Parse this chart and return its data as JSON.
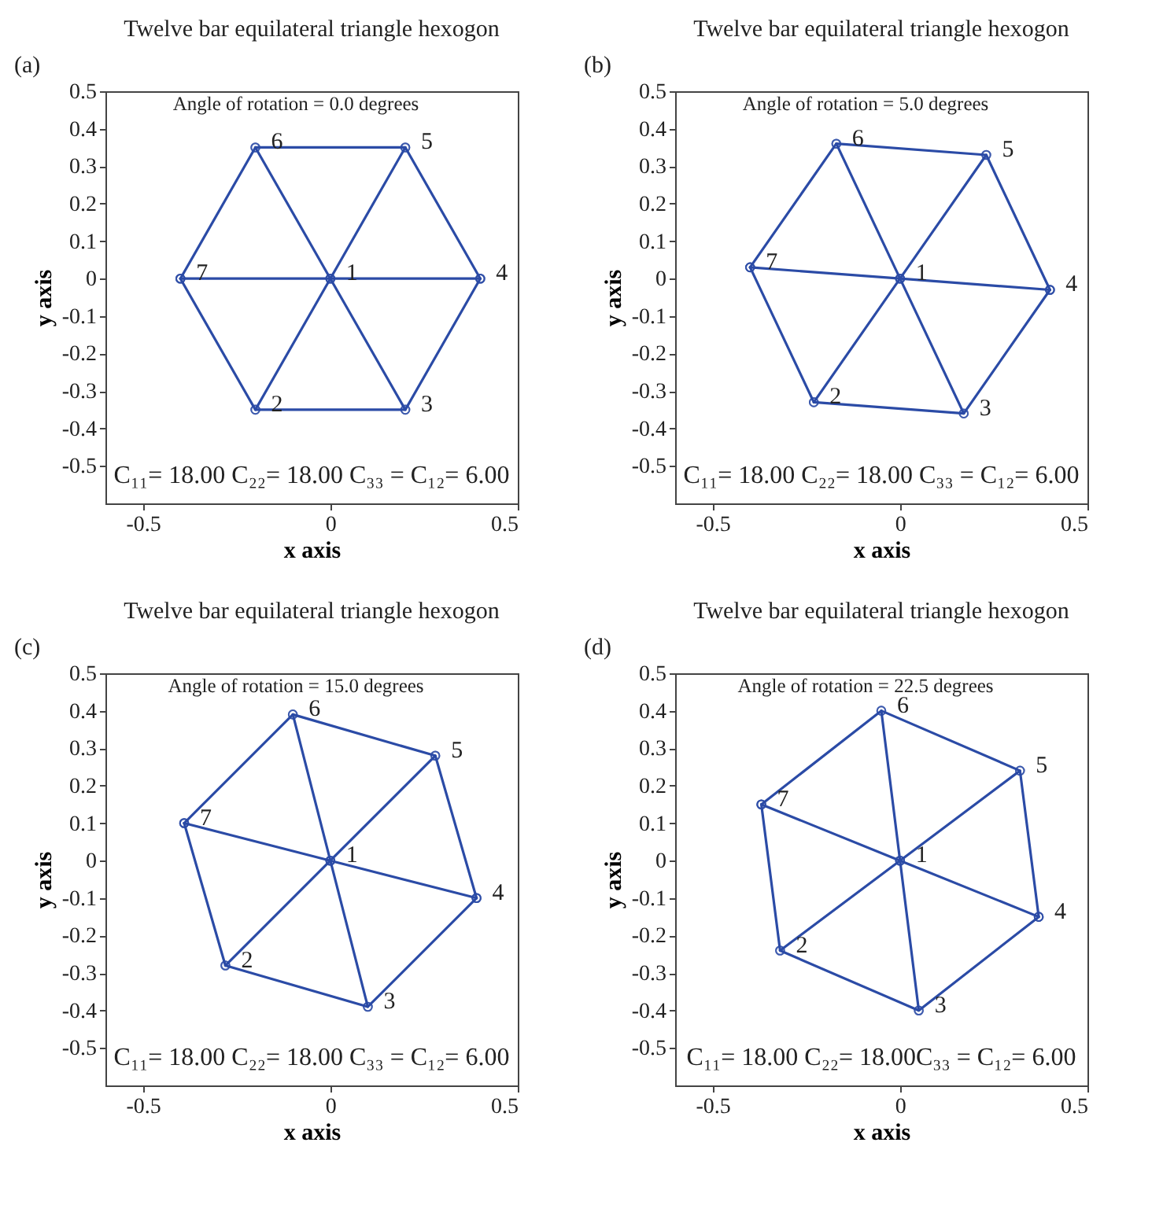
{
  "chart_data": [
    {
      "type": "line",
      "title": "Twelve bar equilateral triangle hexogon",
      "xlabel": "x axis",
      "ylabel": "y axis",
      "xlim": [
        -0.6,
        0.5
      ],
      "ylim": [
        -0.6,
        0.5
      ],
      "xticks": [
        -0.5,
        0,
        0.5
      ],
      "yticks": [
        -0.5,
        -0.4,
        -0.3,
        -0.2,
        -0.1,
        0,
        0.1,
        0.2,
        0.3,
        0.4,
        0.5
      ],
      "grid": false,
      "marker": "circle",
      "line_style": "solid",
      "annotations": [
        "(a)",
        "Angle of rotation = 0.0 degrees",
        "C₁₁= 18.00 C₂₂= 18.00 C₃₃ = C₁₂= 6.00",
        {
          "text": "1",
          "x": 0,
          "y": 0
        },
        {
          "text": "2",
          "x": -0.2,
          "y": -0.35
        },
        {
          "text": "3",
          "x": 0.2,
          "y": -0.35
        },
        {
          "text": "4",
          "x": 0.4,
          "y": 0
        },
        {
          "text": "5",
          "x": 0.2,
          "y": 0.35
        },
        {
          "text": "6",
          "x": -0.2,
          "y": 0.35
        },
        {
          "text": "7",
          "x": -0.4,
          "y": 0
        }
      ],
      "series": [
        {
          "color": "#2b4ba6",
          "x": [
            -0.4,
            -0.2,
            0.2,
            0.4
          ],
          "values": [
            0,
            0.35,
            0.35,
            0
          ]
        },
        {
          "color": "#2b4ba6",
          "x": [
            -0.4,
            -0.2,
            0.2,
            0.4
          ],
          "values": [
            0,
            -0.35,
            -0.35,
            0
          ]
        },
        {
          "color": "#2b4ba6",
          "x": [
            -0.4,
            0,
            0.4
          ],
          "values": [
            0,
            0,
            0
          ]
        },
        {
          "color": "#2b4ba6",
          "x": [
            -0.2,
            0,
            0.2
          ],
          "values": [
            0.35,
            0,
            -0.35
          ]
        },
        {
          "color": "#2b4ba6",
          "x": [
            -0.2,
            0,
            0.2
          ],
          "values": [
            -0.35,
            0,
            0.35
          ]
        }
      ]
    },
    {
      "type": "line",
      "title": "Twelve bar equilateral triangle hexogon",
      "xlabel": "x axis",
      "ylabel": "y axis",
      "xlim": [
        -0.6,
        0.5
      ],
      "ylim": [
        -0.6,
        0.5
      ],
      "xticks": [
        -0.5,
        0,
        0.5
      ],
      "yticks": [
        -0.5,
        -0.4,
        -0.3,
        -0.2,
        -0.1,
        0,
        0.1,
        0.2,
        0.3,
        0.4,
        0.5
      ],
      "grid": false,
      "marker": "circle",
      "line_style": "solid",
      "annotations": [
        "(b)",
        "Angle of rotation = 5.0 degrees",
        "C₁₁= 18.00 C₂₂= 18.00 C₃₃ = C₁₂= 6.00",
        {
          "text": "1",
          "x": 0,
          "y": 0
        },
        {
          "text": "2",
          "x": -0.23,
          "y": -0.33
        },
        {
          "text": "3",
          "x": 0.17,
          "y": -0.36
        },
        {
          "text": "4",
          "x": 0.4,
          "y": -0.03
        },
        {
          "text": "5",
          "x": 0.23,
          "y": 0.33
        },
        {
          "text": "6",
          "x": -0.17,
          "y": 0.36
        },
        {
          "text": "7",
          "x": -0.4,
          "y": 0.03
        }
      ],
      "series": [
        {
          "color": "#2b4ba6",
          "x": [
            -0.4,
            -0.17,
            0.23,
            0.4
          ],
          "values": [
            0.03,
            0.36,
            0.33,
            -0.03
          ]
        },
        {
          "color": "#2b4ba6",
          "x": [
            -0.4,
            -0.23,
            0.17,
            0.4
          ],
          "values": [
            0.03,
            -0.33,
            -0.36,
            -0.03
          ]
        },
        {
          "color": "#2b4ba6",
          "x": [
            -0.4,
            0,
            0.4
          ],
          "values": [
            0.03,
            0,
            -0.03
          ]
        },
        {
          "color": "#2b4ba6",
          "x": [
            -0.17,
            0,
            0.17
          ],
          "values": [
            0.36,
            0,
            -0.36
          ]
        },
        {
          "color": "#2b4ba6",
          "x": [
            -0.23,
            0,
            0.23
          ],
          "values": [
            -0.33,
            0,
            0.33
          ]
        }
      ]
    },
    {
      "type": "line",
      "title": "Twelve bar equilateral triangle hexogon",
      "xlabel": "x axis",
      "ylabel": "y axis",
      "xlim": [
        -0.6,
        0.5
      ],
      "ylim": [
        -0.6,
        0.5
      ],
      "xticks": [
        -0.5,
        0,
        0.5
      ],
      "yticks": [
        -0.5,
        -0.4,
        -0.3,
        -0.2,
        -0.1,
        0,
        0.1,
        0.2,
        0.3,
        0.4,
        0.5
      ],
      "grid": false,
      "marker": "circle",
      "line_style": "solid",
      "annotations": [
        "(c)",
        "Angle of rotation = 15.0 degrees",
        "C₁₁= 18.00 C₂₂= 18.00 C₃₃ = C₁₂= 6.00",
        {
          "text": "1",
          "x": 0,
          "y": 0
        },
        {
          "text": "2",
          "x": -0.28,
          "y": -0.28
        },
        {
          "text": "3",
          "x": 0.1,
          "y": -0.39
        },
        {
          "text": "4",
          "x": 0.39,
          "y": -0.1
        },
        {
          "text": "5",
          "x": 0.28,
          "y": 0.28
        },
        {
          "text": "6",
          "x": -0.1,
          "y": 0.39
        },
        {
          "text": "7",
          "x": -0.39,
          "y": 0.1
        }
      ],
      "series": [
        {
          "color": "#2b4ba6",
          "x": [
            -0.39,
            -0.1,
            0.28,
            0.39
          ],
          "values": [
            0.1,
            0.39,
            0.28,
            -0.1
          ]
        },
        {
          "color": "#2b4ba6",
          "x": [
            -0.39,
            -0.28,
            0.1,
            0.39
          ],
          "values": [
            0.1,
            -0.28,
            -0.39,
            -0.1
          ]
        },
        {
          "color": "#2b4ba6",
          "x": [
            -0.39,
            0,
            0.39
          ],
          "values": [
            0.1,
            0,
            -0.1
          ]
        },
        {
          "color": "#2b4ba6",
          "x": [
            -0.1,
            0,
            0.1
          ],
          "values": [
            0.39,
            0,
            -0.39
          ]
        },
        {
          "color": "#2b4ba6",
          "x": [
            -0.28,
            0,
            0.28
          ],
          "values": [
            -0.28,
            0,
            0.28
          ]
        }
      ]
    },
    {
      "type": "line",
      "title": "Twelve bar equilateral triangle hexogon",
      "xlabel": "x axis",
      "ylabel": "y axis",
      "xlim": [
        -0.6,
        0.5
      ],
      "ylim": [
        -0.6,
        0.5
      ],
      "xticks": [
        -0.5,
        0,
        0.5
      ],
      "yticks": [
        -0.5,
        -0.4,
        -0.3,
        -0.2,
        -0.1,
        0,
        0.1,
        0.2,
        0.3,
        0.4,
        0.5
      ],
      "grid": false,
      "marker": "circle",
      "line_style": "solid",
      "annotations": [
        "(d)",
        "Angle of rotation = 22.5 degrees",
        "C₁₁= 18.00 C₂₂= 18.00C₃₃ = C₁₂= 6.00",
        {
          "text": "1",
          "x": 0,
          "y": 0
        },
        {
          "text": "2",
          "x": -0.32,
          "y": -0.24
        },
        {
          "text": "3",
          "x": 0.05,
          "y": -0.4
        },
        {
          "text": "4",
          "x": 0.37,
          "y": -0.15
        },
        {
          "text": "5",
          "x": 0.32,
          "y": 0.24
        },
        {
          "text": "6",
          "x": -0.05,
          "y": 0.4
        },
        {
          "text": "7",
          "x": -0.37,
          "y": 0.15
        }
      ],
      "series": [
        {
          "color": "#2b4ba6",
          "x": [
            -0.37,
            -0.05,
            0.32,
            0.37
          ],
          "values": [
            0.15,
            0.4,
            0.24,
            -0.15
          ]
        },
        {
          "color": "#2b4ba6",
          "x": [
            -0.37,
            -0.32,
            0.05,
            0.37
          ],
          "values": [
            0.15,
            -0.24,
            -0.4,
            -0.15
          ]
        },
        {
          "color": "#2b4ba6",
          "x": [
            -0.37,
            0,
            0.37
          ],
          "values": [
            0.15,
            0,
            -0.15
          ]
        },
        {
          "color": "#2b4ba6",
          "x": [
            -0.05,
            0,
            0.05
          ],
          "values": [
            0.4,
            0,
            -0.4
          ]
        },
        {
          "color": "#2b4ba6",
          "x": [
            -0.32,
            0,
            0.32
          ],
          "values": [
            -0.24,
            0,
            0.24
          ]
        }
      ]
    }
  ]
}
